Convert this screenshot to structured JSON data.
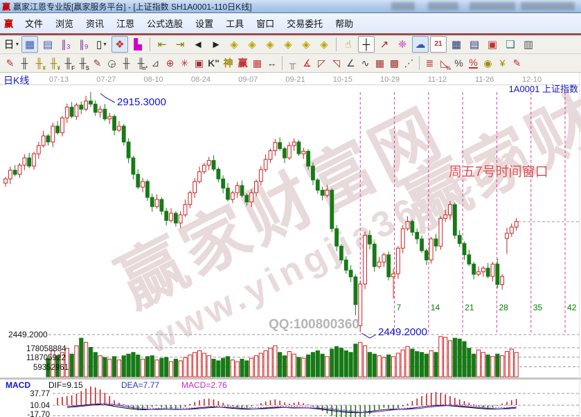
{
  "window": {
    "app_icon": "赢",
    "title": "赢家江恩专业版[赢家服务平台] - [上证指数  SH1A0001-110日K线]"
  },
  "menu": {
    "icon": "赢",
    "items": [
      "文件",
      "浏览",
      "资讯",
      "江恩",
      "公式选股",
      "设置",
      "工具",
      "窗口",
      "交易委托",
      "帮助"
    ]
  },
  "toolbar_row1": [
    {
      "name": "kline-period-button",
      "glyph": "日",
      "color": "#111111",
      "dropdown": true
    },
    {
      "name": "main-chart-window-icon",
      "glyph": "▦",
      "color": "#3a56b4",
      "pressed": true
    },
    {
      "name": "info-panel-icon",
      "glyph": "▤",
      "color": "#3a56b4"
    },
    {
      "name": "minute3-chart-icon",
      "glyph": "∥₃",
      "color": "#8833aa"
    },
    {
      "name": "minute9-chart-icon",
      "glyph": "∥₉",
      "color": "#8833aa"
    },
    {
      "name": "candle-style-button",
      "glyph": "▯",
      "color": "#111111",
      "dropdown": true
    },
    {
      "name": "stock-tool-icon",
      "glyph": "❖",
      "color": "#c03030",
      "pressed": true
    },
    {
      "name": "color-histogram-icon",
      "glyph": "▙",
      "color": "#cc00cc"
    },
    {
      "sep": true
    },
    {
      "name": "first-bar-icon",
      "glyph": "⇤",
      "color": "#808000"
    },
    {
      "name": "last-bar-icon",
      "glyph": "⇥",
      "color": "#808000"
    },
    {
      "name": "prev-bar-icon",
      "glyph": "◄",
      "color": "#222222"
    },
    {
      "name": "next-bar-icon",
      "glyph": "►",
      "color": "#222222"
    },
    {
      "name": "zoom-left-diamond-icon",
      "glyph": "◈",
      "color": "#b8a400"
    },
    {
      "name": "zoom-right-diamond-icon",
      "glyph": "◈",
      "color": "#b8a400"
    },
    {
      "name": "expand-horizontal-diamond-icon",
      "glyph": "◈",
      "color": "#b8a400"
    },
    {
      "name": "compress-diamond-icon",
      "glyph": "◈",
      "color": "#b8a400"
    },
    {
      "name": "expand-all-diamond-icon",
      "glyph": "◈",
      "color": "#b8a400"
    },
    {
      "name": "move-diamond-icon",
      "glyph": "◈",
      "color": "#b8a400"
    },
    {
      "sep": true
    },
    {
      "name": "hand-drag-icon",
      "glyph": "☝",
      "color": "#b07840"
    },
    {
      "name": "crosshair-icon",
      "glyph": "┼",
      "color": "#111111",
      "boxed": true
    },
    {
      "name": "trendline-draw-icon",
      "glyph": "↗",
      "color": "#aa2222"
    },
    {
      "name": "gann-draw-icon",
      "glyph": "❈",
      "color": "#bb33bb"
    },
    {
      "name": "analysis-cloud-icon",
      "glyph": "☁",
      "color": "#3a56b4",
      "pressed": true
    },
    {
      "name": "calendar-icon",
      "glyph": "21",
      "color": "#c03030",
      "boxed": true,
      "small": true
    },
    {
      "name": "calculator-icon",
      "glyph": "▦",
      "color": "#223377"
    },
    {
      "name": "notes-icon",
      "glyph": "▤",
      "color": "#223377"
    },
    {
      "name": "save-icon",
      "glyph": "▣",
      "color": "#c03030"
    },
    {
      "name": "window-link-icon",
      "glyph": "❏",
      "color": "#227777"
    },
    {
      "name": "print-icon",
      "glyph": "▥",
      "color": "#555555"
    }
  ],
  "toolbar_row2": [
    {
      "name": "brush-tool-icon",
      "glyph": "✎",
      "color": "#c03030"
    },
    {
      "name": "gann-time-comb-icon",
      "glyph": "╫",
      "color": "#444444"
    },
    {
      "name": "golden-time-icon",
      "glyph": "╫",
      "color": "#a08800",
      "sub": "¥"
    },
    {
      "name": "golden-time2-icon",
      "glyph": "╫",
      "color": "#a08800",
      "sub": "¥"
    },
    {
      "name": "fib-time-icon",
      "glyph": "╫",
      "color": "#444444",
      "sub": "F"
    },
    {
      "name": "spiral-time-icon",
      "glyph": "╫",
      "color": "#444444",
      "sub": "S"
    },
    {
      "name": "pen-time-icon",
      "glyph": "✎",
      "color": "#884444"
    },
    {
      "name": "cycle-clock-icon",
      "glyph": "◶",
      "color": "#444444"
    },
    {
      "name": "time-comb-icon",
      "glyph": "╫",
      "color": "#444444"
    },
    {
      "name": "n2-time-icon",
      "glyph": "╫",
      "color": "#444444",
      "sub": "n²"
    },
    {
      "name": "angle-measure-icon",
      "glyph": "⊿",
      "color": "#555555"
    },
    {
      "name": "gann-circle-icon",
      "glyph": "⊕",
      "color": "#c03030"
    },
    {
      "name": "gann-star-icon",
      "glyph": "✳",
      "color": "#c03030"
    },
    {
      "name": "gann-square-icon",
      "glyph": "▣",
      "color": "#a03030"
    },
    {
      "name": "k-annotation-icon",
      "glyph": "K\"",
      "color": "#444444",
      "small": true
    },
    {
      "name": "shen-magic-time-icon",
      "glyph": "神",
      "color": "#a08800",
      "small": true
    },
    {
      "name": "yingjia-time-icon",
      "glyph": "赢",
      "color": "#c03030",
      "small": true
    },
    {
      "name": "ruler-grid-icon",
      "glyph": "▦",
      "color": "#c03030"
    },
    {
      "name": "span-measure-icon",
      "glyph": "↔",
      "color": "#444444"
    },
    {
      "sep": true
    },
    {
      "name": "frame-tool-icon",
      "glyph": "╥",
      "color": "#888888"
    },
    {
      "name": "gann-fan-icon",
      "glyph": "∡",
      "color": "#c03030"
    },
    {
      "name": "fan-box-icon",
      "glyph": "◸",
      "color": "#a03030"
    },
    {
      "name": "fan-box-filled-icon",
      "glyph": "◹",
      "color": "#a03030"
    },
    {
      "name": "angle-lines-icon",
      "glyph": "∠",
      "color": "#444444"
    },
    {
      "name": "zigzag-icon",
      "glyph": "∿",
      "color": "#444444"
    },
    {
      "name": "grid-tool-icon",
      "glyph": "▦",
      "color": "#a03030"
    },
    {
      "name": "grid-chart-icon",
      "glyph": "▩",
      "color": "#a03030"
    },
    {
      "name": "parallel-lines-icon",
      "glyph": "⋰",
      "color": "#444444"
    },
    {
      "sep": true
    },
    {
      "name": "volume-profile-icon",
      "glyph": "≣",
      "color": "#c03030"
    },
    {
      "name": "percent-retrace-icon",
      "glyph": "◺",
      "color": "#c03030",
      "sub": "%"
    },
    {
      "name": "percent-icon",
      "glyph": "%",
      "color": "#444444"
    },
    {
      "name": "percent-line-icon",
      "glyph": "%",
      "color": "#c03030",
      "underline": true
    },
    {
      "name": "golden-circle-icon",
      "glyph": "◉",
      "color": "#a08800"
    },
    {
      "name": "golden-lines-icon",
      "glyph": "¥",
      "color": "#a08800"
    },
    {
      "name": "red-pen-icon",
      "glyph": "✎",
      "color": "#c03030"
    }
  ],
  "chart": {
    "pane_label": "日K线",
    "symbol_label": "1A0001  上证指数",
    "dates": [
      "07-13",
      "07-27",
      "08-10",
      "08-24",
      "09-07",
      "09-21",
      "10-15",
      "10-29",
      "11-12",
      "11-26",
      "12-10"
    ],
    "watermark_line1": "赢家财富网",
    "watermark_line2": "www.yingjia360.com",
    "qq_text": "QQ:100800360",
    "annotation_high": "2915.3000",
    "annotation_low": "2449.2000",
    "time_window_note": "周五7号时间窗口",
    "price_axis_label": "2449.2000",
    "volume_axis_labels": [
      "178058884",
      "118705922",
      "59352961"
    ],
    "gann_day_labels": [
      "7",
      "14",
      "21",
      "28",
      "35",
      "42"
    ],
    "colors": {
      "up": "#cc2020",
      "down": "#177a17",
      "timeline": "#e23ca2",
      "annotation_blue": "#1414c8",
      "note_red": "#e05050",
      "count_green": "#008000",
      "watermark": "#e8dada",
      "grid": "#9a9a9a",
      "date_text": "#999999"
    }
  },
  "macd_panel": {
    "name": "MACD",
    "dif_label": "DIF=9.15",
    "dea_label": "DEA=7.77",
    "macd_label": "MACD=2.76",
    "axis_labels": [
      "37.77",
      "10.04",
      "-17.70"
    ]
  },
  "chart_data": {
    "type": "candlestick",
    "symbol": "SH1A0001 上证指数",
    "period": "110日K线",
    "high_annotation": 2915.3,
    "low_annotation": 2449.2,
    "x_tick_dates": [
      "07-13",
      "07-27",
      "08-10",
      "08-24",
      "09-07",
      "09-21",
      "10-15",
      "10-29",
      "11-12",
      "11-26",
      "12-10"
    ],
    "time_window_days": [
      7,
      14,
      21,
      28,
      35,
      42
    ],
    "volume_axis": [
      178058884,
      118705922,
      59352961
    ],
    "candles": [
      [
        2738,
        2750,
        2731,
        2746
      ],
      [
        2746,
        2770,
        2736,
        2763
      ],
      [
        2763,
        2773,
        2751,
        2755
      ],
      [
        2755,
        2777,
        2748,
        2773
      ],
      [
        2773,
        2794,
        2763,
        2787
      ],
      [
        2787,
        2797,
        2767,
        2771
      ],
      [
        2771,
        2799,
        2764,
        2795
      ],
      [
        2795,
        2818,
        2785,
        2811
      ],
      [
        2811,
        2840,
        2807,
        2830
      ],
      [
        2830,
        2834,
        2811,
        2818
      ],
      [
        2818,
        2856,
        2808,
        2849
      ],
      [
        2849,
        2859,
        2832,
        2836
      ],
      [
        2836,
        2869,
        2829,
        2865
      ],
      [
        2865,
        2893,
        2855,
        2886
      ],
      [
        2886,
        2896,
        2864,
        2868
      ],
      [
        2868,
        2894,
        2861,
        2890
      ],
      [
        2890,
        2897,
        2872,
        2882
      ],
      [
        2882,
        2908,
        2878,
        2898
      ],
      [
        2898,
        2915.3,
        2886,
        2892
      ],
      [
        2892,
        2899,
        2869,
        2876
      ],
      [
        2876,
        2889,
        2866,
        2882
      ],
      [
        2882,
        2892,
        2859,
        2863
      ],
      [
        2863,
        2875,
        2853,
        2868
      ],
      [
        2868,
        2872,
        2831,
        2841
      ],
      [
        2841,
        2859,
        2837,
        2849
      ],
      [
        2849,
        2853,
        2811,
        2818
      ],
      [
        2818,
        2825,
        2777,
        2787
      ],
      [
        2787,
        2791,
        2745,
        2755
      ],
      [
        2755,
        2765,
        2726,
        2730
      ],
      [
        2730,
        2748,
        2720,
        2741
      ],
      [
        2741,
        2745,
        2703,
        2710
      ],
      [
        2710,
        2717,
        2682,
        2692
      ],
      [
        2692,
        2716,
        2688,
        2706
      ],
      [
        2706,
        2710,
        2676,
        2683
      ],
      [
        2683,
        2690,
        2655,
        2665
      ],
      [
        2665,
        2689,
        2661,
        2679
      ],
      [
        2679,
        2683,
        2653,
        2660
      ],
      [
        2660,
        2683,
        2650,
        2676
      ],
      [
        2676,
        2706,
        2672,
        2696
      ],
      [
        2696,
        2723,
        2689,
        2719
      ],
      [
        2719,
        2748,
        2709,
        2741
      ],
      [
        2741,
        2770,
        2737,
        2760
      ],
      [
        2760,
        2777,
        2756,
        2773
      ],
      [
        2773,
        2789,
        2763,
        2782
      ],
      [
        2782,
        2792,
        2761,
        2765
      ],
      [
        2765,
        2769,
        2739,
        2746
      ],
      [
        2746,
        2753,
        2718,
        2728
      ],
      [
        2728,
        2738,
        2702,
        2706
      ],
      [
        2706,
        2723,
        2699,
        2719
      ],
      [
        2719,
        2740,
        2709,
        2733
      ],
      [
        2733,
        2743,
        2710,
        2714
      ],
      [
        2714,
        2718,
        2694,
        2701
      ],
      [
        2701,
        2726,
        2691,
        2719
      ],
      [
        2719,
        2745,
        2712,
        2741
      ],
      [
        2741,
        2771,
        2734,
        2764
      ],
      [
        2764,
        2794,
        2760,
        2784
      ],
      [
        2784,
        2805,
        2777,
        2801
      ],
      [
        2801,
        2824,
        2791,
        2817
      ],
      [
        2817,
        2827,
        2801,
        2805
      ],
      [
        2805,
        2809,
        2777,
        2787
      ],
      [
        2787,
        2818,
        2783,
        2811
      ],
      [
        2811,
        2825,
        2801,
        2818
      ],
      [
        2818,
        2822,
        2791,
        2795
      ],
      [
        2795,
        2807,
        2785,
        2800
      ],
      [
        2800,
        2804,
        2764,
        2771
      ],
      [
        2771,
        2778,
        2734,
        2744
      ],
      [
        2744,
        2748,
        2717,
        2724
      ],
      [
        2724,
        2731,
        2704,
        2714
      ],
      [
        2714,
        2734,
        2710,
        2724
      ],
      [
        2724,
        2728,
        2642,
        2649
      ],
      [
        2649,
        2656,
        2605,
        2615
      ],
      [
        2615,
        2619,
        2581,
        2588
      ],
      [
        2588,
        2595,
        2561,
        2568
      ],
      [
        2568,
        2578,
        2545,
        2555
      ],
      [
        2555,
        2560,
        2480,
        2501
      ],
      [
        2460,
        2548,
        2449.2,
        2541
      ],
      [
        2541,
        2643,
        2531,
        2636
      ],
      [
        2636,
        2646,
        2609,
        2619
      ],
      [
        2619,
        2623,
        2565,
        2575
      ],
      [
        2575,
        2594,
        2571,
        2584
      ],
      [
        2584,
        2602,
        2574,
        2598
      ],
      [
        2598,
        2605,
        2548,
        2555
      ],
      [
        2555,
        2571,
        2513,
        2561
      ],
      [
        2561,
        2615,
        2551,
        2611
      ],
      [
        2611,
        2656,
        2601,
        2649
      ],
      [
        2649,
        2673,
        2645,
        2663
      ],
      [
        2663,
        2667,
        2635,
        2642
      ],
      [
        2642,
        2649,
        2619,
        2629
      ],
      [
        2629,
        2636,
        2602,
        2606
      ],
      [
        2606,
        2610,
        2578,
        2588
      ],
      [
        2588,
        2633,
        2581,
        2629
      ],
      [
        2629,
        2639,
        2605,
        2615
      ],
      [
        2615,
        2673,
        2608,
        2669
      ],
      [
        2669,
        2686,
        2662,
        2676
      ],
      [
        2676,
        2703,
        2666,
        2696
      ],
      [
        2696,
        2700,
        2629,
        2636
      ],
      [
        2636,
        2646,
        2613,
        2620
      ],
      [
        2620,
        2624,
        2588,
        2598
      ],
      [
        2598,
        2608,
        2576,
        2580
      ],
      [
        2580,
        2584,
        2550,
        2560
      ],
      [
        2560,
        2575,
        2556,
        2565
      ],
      [
        2565,
        2576,
        2555,
        2572
      ],
      [
        2572,
        2582,
        2552,
        2556
      ],
      [
        2556,
        2584,
        2546,
        2580
      ],
      [
        2580,
        2590,
        2533,
        2540
      ],
      [
        2540,
        2560,
        2530,
        2556
      ],
      [
        2630,
        2651,
        2600,
        2640
      ],
      [
        2640,
        2659,
        2633,
        2652
      ],
      [
        2652,
        2670,
        2645,
        2663
      ]
    ],
    "volumes_millions": [
      95,
      110,
      88,
      120,
      135,
      100,
      125,
      140,
      150,
      115,
      160,
      130,
      150,
      175,
      140,
      190,
      235,
      210,
      180,
      150,
      130,
      120,
      110,
      125,
      105,
      130,
      140,
      150,
      135,
      110,
      125,
      130,
      105,
      115,
      120,
      95,
      110,
      100,
      120,
      135,
      150,
      160,
      145,
      130,
      110,
      100,
      115,
      125,
      105,
      95,
      110,
      100,
      115,
      130,
      145,
      160,
      175,
      190,
      150,
      130,
      155,
      140,
      120,
      115,
      135,
      150,
      160,
      140,
      125,
      170,
      185,
      175,
      160,
      150,
      200,
      210,
      190,
      150,
      140,
      130,
      120,
      135,
      125,
      145,
      165,
      185,
      170,
      155,
      150,
      140,
      160,
      150,
      245,
      240,
      220,
      235,
      230,
      215,
      175,
      140,
      165,
      150,
      135,
      125,
      140,
      130,
      155,
      170,
      150
    ],
    "macd": {
      "dif": 9.15,
      "dea": 7.77,
      "macd": 2.76,
      "axis": [
        37.77,
        10.04,
        -17.7
      ],
      "histogram": [
        0,
        0,
        0,
        0,
        0,
        0,
        0,
        0,
        0,
        0,
        0,
        18,
        20,
        22,
        24,
        28,
        34,
        40,
        45,
        43,
        38,
        30,
        22,
        12,
        6,
        2,
        -6,
        -10,
        -12,
        -11,
        -8,
        -4,
        -2,
        -5,
        -8,
        -10,
        -9,
        -7,
        -4,
        3,
        8,
        12,
        15,
        16,
        14,
        10,
        6,
        2,
        -2,
        -5,
        -7,
        -6,
        -3,
        1,
        5,
        9,
        12,
        14,
        11,
        7,
        4,
        6,
        8,
        5,
        2,
        -3,
        -8,
        -14,
        -20,
        -26,
        -32,
        -36,
        -38,
        -40,
        -42,
        -38,
        -30,
        -22,
        -15,
        -10,
        -6,
        -8,
        -10,
        -7,
        -3,
        4,
        10,
        16,
        22,
        27,
        30,
        32,
        30,
        26,
        22,
        18,
        14,
        10,
        6,
        2,
        -2,
        -5,
        -7,
        -5,
        -2,
        4,
        8,
        12,
        15
      ]
    }
  }
}
